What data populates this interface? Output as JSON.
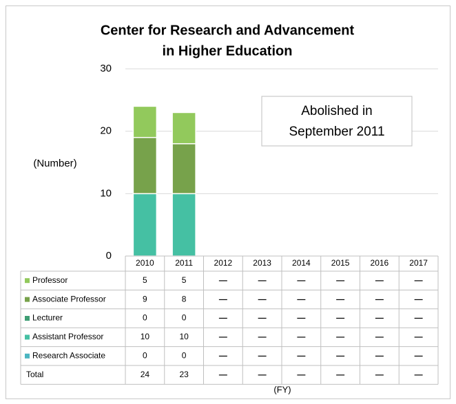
{
  "chart_data": {
    "type": "bar",
    "stacked": true,
    "title_lines": [
      "Center for Research and Advancement",
      "in Higher Education"
    ],
    "y_label": "(Number)",
    "x_label": "(FY)",
    "annotation_lines": [
      "Abolished in",
      "September 2011"
    ],
    "categories": [
      "2010",
      "2011",
      "2012",
      "2013",
      "2014",
      "2015",
      "2016",
      "2017"
    ],
    "series": [
      {
        "name": "Professor",
        "color": "#92c95c",
        "values": [
          5,
          5,
          null,
          null,
          null,
          null,
          null,
          null
        ]
      },
      {
        "name": "Associate Professor",
        "color": "#77a24b",
        "values": [
          9,
          8,
          null,
          null,
          null,
          null,
          null,
          null
        ]
      },
      {
        "name": "Lecturer",
        "color": "#3f9e74",
        "values": [
          0,
          0,
          null,
          null,
          null,
          null,
          null,
          null
        ]
      },
      {
        "name": "Assistant Professor",
        "color": "#45c0a3",
        "values": [
          10,
          10,
          null,
          null,
          null,
          null,
          null,
          null
        ]
      },
      {
        "name": "Research Associate",
        "color": "#4bb5c1",
        "values": [
          0,
          0,
          null,
          null,
          null,
          null,
          null,
          null
        ]
      }
    ],
    "total_label": "Total",
    "totals": [
      24,
      23,
      null,
      null,
      null,
      null,
      null,
      null
    ],
    "null_label": "—",
    "ylim": [
      0,
      30
    ],
    "yticks": [
      0,
      10,
      20,
      30
    ],
    "grid": true
  }
}
